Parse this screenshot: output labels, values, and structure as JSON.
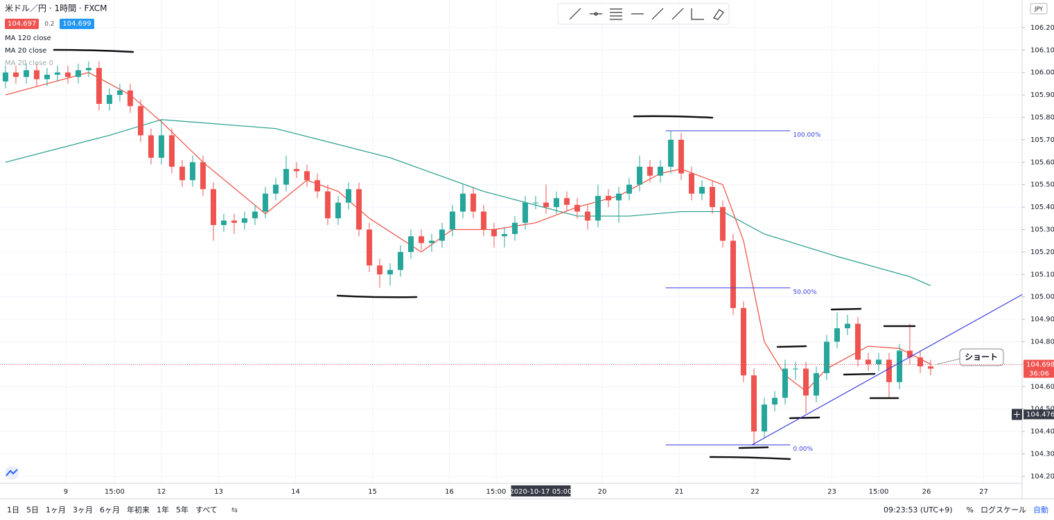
{
  "header": {
    "symbol": "米ドル／円 · 1時間 · FXCM",
    "bid": "104.697",
    "spread": "0.2",
    "ask": "104.699",
    "hidden_indicator": "MA 20 close 0"
  },
  "chart_data": {
    "type": "candlestick",
    "currency": "JPY",
    "up_color": "#26a69a",
    "down_color": "#ef5350",
    "x": [
      0,
      1,
      2,
      3,
      4,
      5,
      6,
      7,
      8,
      9,
      10,
      11,
      12,
      13,
      14,
      15,
      16,
      17,
      18,
      19,
      20,
      21,
      22,
      23,
      24,
      25,
      26,
      27,
      28,
      29,
      30,
      31,
      32,
      33,
      34,
      35,
      36,
      37,
      38,
      39,
      40,
      41,
      42,
      43,
      44,
      45,
      46,
      47,
      48,
      49,
      50,
      51,
      52,
      53,
      54,
      55,
      56,
      57,
      58,
      59,
      60,
      61,
      62,
      63,
      64,
      65,
      66,
      67,
      68,
      69,
      70,
      71,
      72,
      73,
      74,
      75,
      76,
      77,
      78,
      79,
      80,
      81,
      82,
      83,
      84,
      85,
      86,
      87,
      88,
      89
    ],
    "open": [
      105.96,
      106.0,
      105.98,
      106.01,
      105.97,
      105.99,
      106.0,
      105.98,
      106.01,
      106.02,
      105.86,
      105.9,
      105.92,
      105.85,
      105.72,
      105.62,
      105.72,
      105.58,
      105.52,
      105.6,
      105.48,
      105.32,
      105.34,
      105.33,
      105.35,
      105.38,
      105.46,
      105.5,
      105.57,
      105.56,
      105.52,
      105.47,
      105.35,
      105.42,
      105.48,
      105.3,
      105.14,
      105.1,
      105.12,
      105.2,
      105.27,
      105.24,
      105.25,
      105.3,
      105.38,
      105.46,
      105.38,
      105.3,
      105.27,
      105.28,
      105.33,
      105.42,
      105.42,
      105.4,
      105.44,
      105.41,
      105.38,
      105.34,
      105.45,
      105.43,
      105.46,
      105.5,
      105.58,
      105.54,
      105.58,
      105.7,
      105.55,
      105.46,
      105.49,
      105.4,
      105.25,
      104.95,
      104.65,
      104.4,
      104.52,
      104.55,
      104.68,
      104.68,
      104.56,
      104.66,
      104.8,
      104.86,
      104.88,
      104.72,
      104.7,
      104.72,
      104.62,
      104.76,
      104.73,
      104.69
    ],
    "high": [
      106.03,
      106.03,
      106.04,
      106.04,
      106.02,
      106.03,
      106.03,
      106.04,
      106.05,
      106.05,
      105.93,
      105.95,
      105.95,
      105.88,
      105.75,
      105.79,
      105.75,
      105.61,
      105.63,
      105.63,
      105.51,
      105.37,
      105.37,
      105.38,
      105.41,
      105.49,
      105.53,
      105.63,
      105.6,
      105.59,
      105.55,
      105.5,
      105.45,
      105.51,
      105.51,
      105.33,
      105.17,
      105.15,
      105.23,
      105.3,
      105.3,
      105.28,
      105.33,
      105.41,
      105.5,
      105.49,
      105.41,
      105.33,
      105.31,
      105.36,
      105.45,
      105.45,
      105.5,
      105.47,
      105.47,
      105.44,
      105.41,
      105.5,
      105.48,
      105.49,
      105.53,
      105.63,
      105.61,
      105.61,
      105.74,
      105.73,
      105.58,
      105.52,
      105.52,
      105.43,
      105.28,
      104.98,
      104.68,
      104.55,
      104.58,
      104.72,
      104.71,
      104.71,
      104.69,
      104.83,
      104.93,
      104.92,
      104.91,
      104.75,
      104.75,
      104.75,
      104.79,
      104.88,
      104.76,
      104.72
    ],
    "low": [
      105.93,
      105.95,
      105.95,
      105.94,
      105.94,
      105.96,
      105.95,
      105.95,
      105.98,
      105.83,
      105.83,
      105.87,
      105.82,
      105.69,
      105.59,
      105.59,
      105.55,
      105.49,
      105.49,
      105.45,
      105.25,
      105.29,
      105.28,
      105.3,
      105.32,
      105.35,
      105.43,
      105.47,
      105.53,
      105.49,
      105.44,
      105.32,
      105.32,
      105.39,
      105.27,
      105.11,
      105.04,
      105.05,
      105.09,
      105.17,
      105.21,
      105.2,
      105.22,
      105.27,
      105.35,
      105.35,
      105.27,
      105.22,
      105.22,
      105.25,
      105.3,
      105.39,
      105.37,
      105.37,
      105.38,
      105.35,
      105.3,
      105.31,
      105.4,
      105.33,
      105.43,
      105.47,
      105.51,
      105.51,
      105.55,
      105.52,
      105.43,
      105.43,
      105.37,
      105.22,
      104.92,
      104.62,
      104.34,
      104.37,
      104.49,
      104.52,
      104.63,
      104.48,
      104.53,
      104.63,
      104.77,
      104.83,
      104.69,
      104.67,
      104.67,
      104.55,
      104.59,
      104.7,
      104.66,
      104.65
    ],
    "close": [
      106.0,
      105.98,
      106.01,
      105.97,
      105.99,
      106.0,
      105.98,
      106.01,
      106.02,
      105.86,
      105.9,
      105.92,
      105.85,
      105.72,
      105.62,
      105.72,
      105.58,
      105.52,
      105.6,
      105.48,
      105.32,
      105.34,
      105.33,
      105.35,
      105.38,
      105.46,
      105.5,
      105.57,
      105.56,
      105.52,
      105.47,
      105.35,
      105.42,
      105.48,
      105.3,
      105.14,
      105.1,
      105.12,
      105.2,
      105.27,
      105.24,
      105.25,
      105.3,
      105.38,
      105.46,
      105.38,
      105.3,
      105.27,
      105.28,
      105.33,
      105.42,
      105.42,
      105.4,
      105.44,
      105.41,
      105.38,
      105.34,
      105.45,
      105.43,
      105.46,
      105.5,
      105.58,
      105.54,
      105.58,
      105.7,
      105.55,
      105.46,
      105.49,
      105.4,
      105.25,
      104.95,
      104.65,
      104.4,
      104.52,
      104.55,
      104.68,
      104.68,
      104.56,
      104.66,
      104.8,
      104.86,
      104.88,
      104.72,
      104.7,
      104.72,
      104.62,
      104.76,
      104.73,
      104.69,
      104.68
    ],
    "series": [
      {
        "name": "MA 120 close",
        "color": "#1e9b8a",
        "x": [
          0,
          10,
          15,
          26,
          37,
          46,
          55,
          60,
          65,
          69,
          73,
          80,
          87,
          89
        ],
        "values": [
          105.6,
          105.72,
          105.79,
          105.75,
          105.62,
          105.47,
          105.36,
          105.36,
          105.38,
          105.38,
          105.28,
          105.18,
          105.09,
          105.05
        ]
      },
      {
        "name": "MA 20 close",
        "color": "#f04b3e",
        "x": [
          0,
          8,
          12,
          15,
          19,
          25,
          29,
          32,
          35,
          40,
          43,
          47,
          51,
          55,
          59,
          63,
          65,
          69,
          71,
          73,
          75,
          77,
          79,
          83,
          86,
          89
        ],
        "values": [
          105.9,
          106.0,
          105.9,
          105.78,
          105.6,
          105.37,
          105.52,
          105.47,
          105.35,
          105.2,
          105.3,
          105.3,
          105.33,
          105.4,
          105.45,
          105.55,
          105.57,
          105.5,
          105.25,
          104.8,
          104.65,
          104.58,
          104.68,
          104.78,
          104.77,
          104.7
        ]
      }
    ],
    "xlim": [
      -0.53,
      97.8
    ],
    "ylim": [
      104.169,
      106.323
    ],
    "xticks": [
      {
        "value": 5.8,
        "label": "9"
      },
      {
        "value": 10.5,
        "label": "15:00"
      },
      {
        "value": 15,
        "label": "12"
      },
      {
        "value": 20.5,
        "label": "13"
      },
      {
        "value": 27.9,
        "label": "14"
      },
      {
        "value": 35.3,
        "label": "15"
      },
      {
        "value": 42.7,
        "label": "16"
      },
      {
        "value": 47.2,
        "label": "15:00"
      },
      {
        "value": 57.4,
        "label": "20"
      },
      {
        "value": 64.8,
        "label": "21"
      },
      {
        "value": 72.1,
        "label": "22"
      },
      {
        "value": 79.5,
        "label": "23"
      },
      {
        "value": 84,
        "label": "15:00"
      },
      {
        "value": 88.6,
        "label": "26"
      },
      {
        "value": 94.1,
        "label": "27"
      }
    ],
    "yticks": [
      {
        "value": 104.2,
        "label": "104.200"
      },
      {
        "value": 104.3,
        "label": "104.300"
      },
      {
        "value": 104.4,
        "label": "104.400"
      },
      {
        "value": 104.5,
        "label": "104.500"
      },
      {
        "value": 104.6,
        "label": "104.600"
      },
      {
        "value": 104.7,
        "label": "104.700"
      },
      {
        "value": 104.8,
        "label": "104.800"
      },
      {
        "value": 104.9,
        "label": "104.900"
      },
      {
        "value": 105,
        "label": "105.000"
      },
      {
        "value": 105.1,
        "label": "105.100"
      },
      {
        "value": 105.2,
        "label": "105.200"
      },
      {
        "value": 105.3,
        "label": "105.300"
      },
      {
        "value": 105.4,
        "label": "105.400"
      },
      {
        "value": 105.5,
        "label": "105.500"
      },
      {
        "value": 105.6,
        "label": "105.600"
      },
      {
        "value": 105.7,
        "label": "105.700"
      },
      {
        "value": 105.8,
        "label": "105.800"
      },
      {
        "value": 105.9,
        "label": "105.900"
      },
      {
        "value": 106,
        "label": "106.000"
      },
      {
        "value": 106.1,
        "label": "106.100"
      },
      {
        "value": 106.2,
        "label": "106.200"
      }
    ],
    "grid": true,
    "price_line": {
      "value": 104.698,
      "label": "104.698",
      "countdown": "36:06"
    },
    "crosshair": {
      "value": 104.476,
      "label": "104.476"
    },
    "crosshair_x": {
      "value": 51.5,
      "label": "2020-10-17 05:00"
    },
    "fibonacci": {
      "x": [
        63.5,
        75.5
      ],
      "y": [
        104.34,
        105.74
      ],
      "color": "#3a3ee0",
      "levels": [
        {
          "value": 100,
          "label": "100.00%"
        },
        {
          "value": 50,
          "label": "50.00%"
        },
        {
          "value": 0,
          "label": "0.00%"
        }
      ]
    },
    "trendline": {
      "x": [
        71.8,
        97.8
      ],
      "y": [
        104.34,
        105.01
      ],
      "color": "#3a3ee0"
    },
    "annotation": "ショート"
  },
  "bottom_bar": {
    "ranges": [
      "1日",
      "5日",
      "1ヶ月",
      "3ヶ月",
      "6ヶ月",
      "年初来",
      "1年",
      "5年",
      "すべて"
    ],
    "clock": "09:23:53 (UTC+9)",
    "percent": "%",
    "log": "ログスケール",
    "auto": "自動"
  }
}
